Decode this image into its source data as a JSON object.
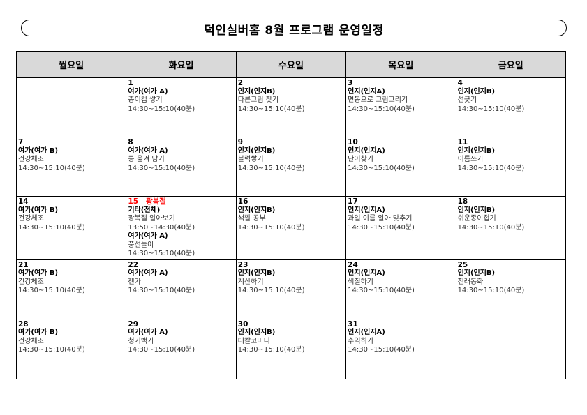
{
  "title": "덕인실버홈 8월 프로그램 운영일정",
  "weekdays": [
    "월요일",
    "화요일",
    "수요일",
    "목요일",
    "금요일"
  ],
  "colors": {
    "header_bg": "#d9d9d9",
    "holiday": "#ff0000"
  },
  "weeks": [
    [
      null,
      {
        "date": "1",
        "entries": [
          {
            "category": "여가(여가 A)",
            "activity": "종이컵 쌓기",
            "time": "14:30~15:10(40분)"
          }
        ]
      },
      {
        "date": "2",
        "entries": [
          {
            "category": "인지(인지B)",
            "activity": "다른그림 찾기",
            "time": "14:30~15:10(40분)"
          }
        ]
      },
      {
        "date": "3",
        "entries": [
          {
            "category": "인지(인지A)",
            "activity": "면봉으로 그림그리기",
            "time": "14:30~15:10(40분)"
          }
        ]
      },
      {
        "date": "4",
        "entries": [
          {
            "category": "인지(인지B)",
            "activity": "선긋기",
            "time": "14:30~15:10(40분)"
          }
        ]
      }
    ],
    [
      {
        "date": "7",
        "entries": [
          {
            "category": "여가(여가 B)",
            "activity": "건강체조",
            "time": "14:30~15:10(40분)"
          }
        ]
      },
      {
        "date": "8",
        "entries": [
          {
            "category": "여가(여가 A)",
            "activity": "콩 옮겨 담기",
            "time": "14:30~15:10(40분)"
          }
        ]
      },
      {
        "date": "9",
        "entries": [
          {
            "category": "인지(인지B)",
            "activity": "블럭쌓기",
            "time": "14:30~15:10(40분)"
          }
        ]
      },
      {
        "date": "10",
        "entries": [
          {
            "category": "인지(인지A)",
            "activity": "단어찾기",
            "time": "14:30~15:10(40분)"
          }
        ]
      },
      {
        "date": "11",
        "entries": [
          {
            "category": "인지(인지B)",
            "activity": "이름쓰기",
            "time": "14:30~15:10(40분)"
          }
        ]
      }
    ],
    [
      {
        "date": "14",
        "entries": [
          {
            "category": "여가(여가 B)",
            "activity": "건강체조",
            "time": "14:30~15:10(40분)"
          }
        ]
      },
      {
        "date": "15",
        "holiday": "광복절",
        "entries": [
          {
            "category": "기타(전체)",
            "activity": "광복절 알아보기",
            "time": "13:50~14:30(40분)"
          },
          {
            "category": "여가(여가 A)",
            "activity": "풍선놀이",
            "time": "14:30~15:10(40분)"
          }
        ]
      },
      {
        "date": "16",
        "entries": [
          {
            "category": "인지(인지B)",
            "activity": "색깔 공부",
            "time": "14:30~15:10(40분)"
          }
        ]
      },
      {
        "date": "17",
        "entries": [
          {
            "category": "인지(인지A)",
            "activity": "과일 이름 알아 맞추기",
            "time": "14:30~15:10(40분)"
          }
        ]
      },
      {
        "date": "18",
        "entries": [
          {
            "category": "인지(인지B)",
            "activity": "쉬운종이접기",
            "time": "14:30~15:10(40분)"
          }
        ]
      }
    ],
    [
      {
        "date": "21",
        "entries": [
          {
            "category": "여가(여가 B)",
            "activity": "건강체조",
            "time": "14:30~15:10(40분)"
          }
        ]
      },
      {
        "date": "22",
        "entries": [
          {
            "category": "여가(여가 A)",
            "activity": "젠가",
            "time": "14:30~15:10(40분)"
          }
        ]
      },
      {
        "date": "23",
        "entries": [
          {
            "category": "인지(인지B)",
            "activity": "계산하기",
            "time": "14:30~15:10(40분)"
          }
        ]
      },
      {
        "date": "24",
        "entries": [
          {
            "category": "인지(인지A)",
            "activity": "색칠하기",
            "time": "14:30~15:10(40분)"
          }
        ]
      },
      {
        "date": "25",
        "entries": [
          {
            "category": "인지(인지B)",
            "activity": "전래동화",
            "time": "14:30~15:10(40분)"
          }
        ]
      }
    ],
    [
      {
        "date": "28",
        "entries": [
          {
            "category": "여가(여가 B)",
            "activity": "건강체조",
            "time": "14:30~15:10(40분)"
          }
        ]
      },
      {
        "date": "29",
        "entries": [
          {
            "category": "여가(여가 A)",
            "activity": "청기백기",
            "time": "14:30~15:10(40분)"
          }
        ]
      },
      {
        "date": "30",
        "entries": [
          {
            "category": "인지(인지B)",
            "activity": "데칼코마니",
            "time": "14:30~15:10(40분)"
          }
        ]
      },
      {
        "date": "31",
        "entries": [
          {
            "category": "인지(인지A)",
            "activity": "수익히기",
            "time": "14:30~15:10(40분)"
          }
        ]
      },
      null
    ]
  ]
}
